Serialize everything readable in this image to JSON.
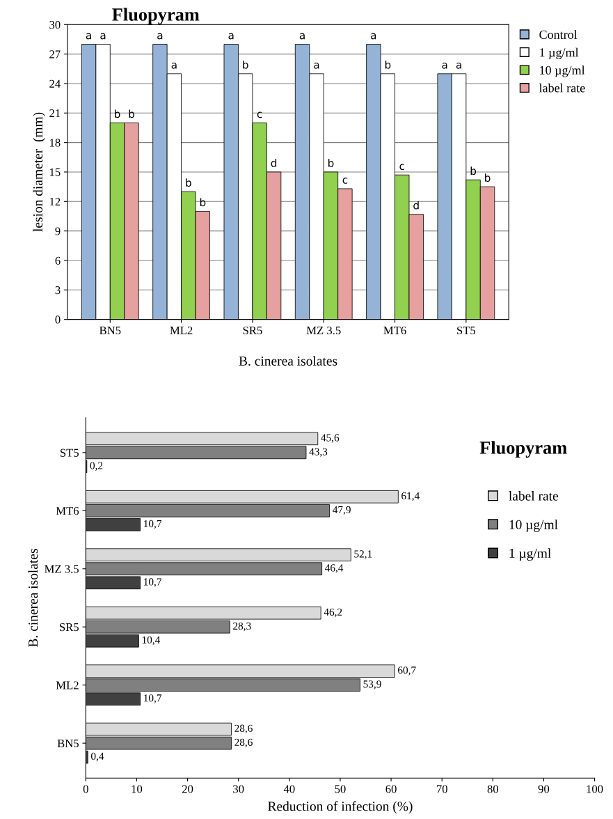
{
  "chart_data": [
    {
      "type": "bar",
      "title": "Fluopyram",
      "xlabel": "B. cinerea isolates",
      "ylabel": "lesion diameter  (mm)",
      "categories": [
        "BN5",
        "ML2",
        "SR5",
        "MZ 3.5",
        "MT6",
        "ST5"
      ],
      "series": [
        {
          "name": "Control",
          "color": "#95b3d7",
          "values": [
            28,
            28,
            28,
            28,
            28,
            25
          ],
          "value_labels": [
            "a",
            "a",
            "a",
            "a",
            "a",
            "a"
          ]
        },
        {
          "name": "1 µg/ml",
          "color": "#ffffff",
          "values": [
            28,
            25,
            25,
            25,
            25,
            25
          ],
          "value_labels": [
            "a",
            "a",
            "b",
            "a",
            "b",
            "a"
          ]
        },
        {
          "name": "10 µg/ml",
          "color": "#92d050",
          "values": [
            20,
            13,
            20,
            15,
            14.7,
            14.2
          ],
          "value_labels": [
            "b",
            "b",
            "c",
            "b",
            "c",
            "b"
          ]
        },
        {
          "name": "label rate",
          "color": "#e6a0a0",
          "values": [
            20,
            11,
            15,
            13.3,
            10.7,
            13.5
          ],
          "value_labels": [
            "b",
            "b",
            "d",
            "c",
            "d",
            "b"
          ]
        }
      ],
      "ylim": [
        0,
        30
      ],
      "yticks": [
        0,
        3,
        6,
        9,
        12,
        15,
        18,
        21,
        24,
        27,
        30
      ],
      "grid": "y",
      "legend": "right"
    },
    {
      "type": "bar",
      "orientation": "horizontal",
      "title": "Fluopyram",
      "xlabel": "Reduction of infection (%)",
      "ylabel": "B. cinerea isolates",
      "categories": [
        "ST5",
        "MT6",
        "MZ 3.5",
        "SR5",
        "ML2",
        "BN5"
      ],
      "series": [
        {
          "name": "label rate",
          "color": "#d9d9d9",
          "values": [
            45.6,
            61.4,
            52.1,
            46.2,
            60.7,
            28.6
          ],
          "value_labels": [
            "45,6",
            "61,4",
            "52,1",
            "46,2",
            "60,7",
            "28,6"
          ]
        },
        {
          "name": "10 µg/ml",
          "color": "#808080",
          "values": [
            43.3,
            47.9,
            46.4,
            28.3,
            53.9,
            28.6
          ],
          "value_labels": [
            "43,3",
            "47,9",
            "46,4",
            "28,3",
            "53,9",
            "28,6"
          ]
        },
        {
          "name": "1 µg/ml",
          "color": "#404040",
          "values": [
            0.2,
            10.7,
            10.7,
            10.4,
            10.7,
            0.4
          ],
          "value_labels": [
            "0,2",
            "10,7",
            "10,7",
            "10,4",
            "10,7",
            "0,4"
          ]
        }
      ],
      "xlim": [
        0,
        100
      ],
      "xticks": [
        0,
        10,
        20,
        30,
        40,
        50,
        60,
        70,
        80,
        90,
        100
      ],
      "grid": false,
      "legend": "right"
    }
  ]
}
